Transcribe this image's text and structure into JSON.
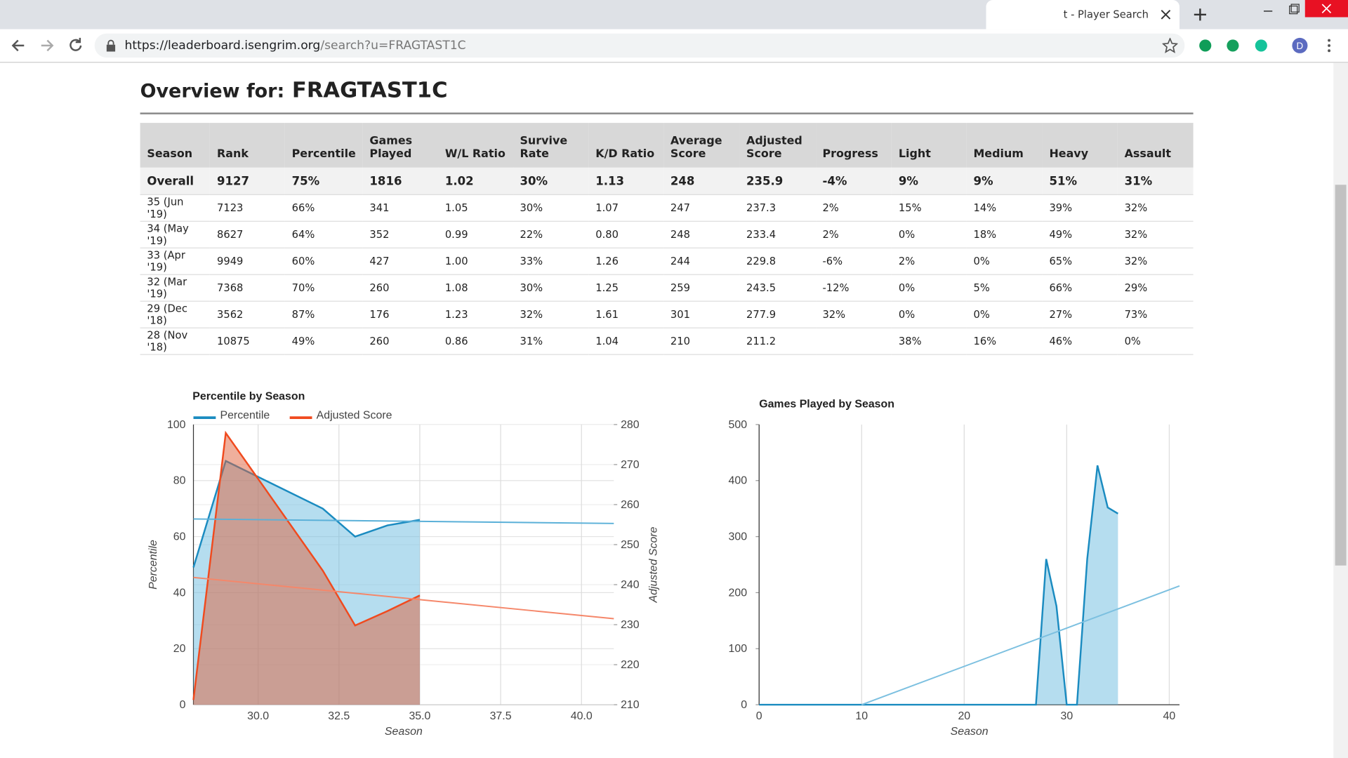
{
  "browser": {
    "tab_title": "t - Player Search",
    "url_host": "https://leaderboard.isengrim.org",
    "url_path": "/search?u=FRAGTAST1C",
    "profile_initial": "D"
  },
  "heading": {
    "label": "Overview for:",
    "player": "FRAGTAST1C"
  },
  "table": {
    "headers": [
      "Season",
      "Rank",
      "Percentile",
      "Games Played",
      "W/L Ratio",
      "Survive Rate",
      "K/D Ratio",
      "Average Score",
      "Adjusted Score",
      "Progress",
      "Light",
      "Medium",
      "Heavy",
      "Assault"
    ],
    "overall": [
      "Overall",
      "9127",
      "75%",
      "1816",
      "1.02",
      "30%",
      "1.13",
      "248",
      "235.9",
      "-4%",
      "9%",
      "9%",
      "51%",
      "31%"
    ],
    "rows": [
      [
        "35 (Jun '19)",
        "7123",
        "66%",
        "341",
        "1.05",
        "30%",
        "1.07",
        "247",
        "237.3",
        "2%",
        "15%",
        "14%",
        "39%",
        "32%"
      ],
      [
        "34 (May '19)",
        "8627",
        "64%",
        "352",
        "0.99",
        "22%",
        "0.80",
        "248",
        "233.4",
        "2%",
        "0%",
        "18%",
        "49%",
        "32%"
      ],
      [
        "33 (Apr '19)",
        "9949",
        "60%",
        "427",
        "1.00",
        "33%",
        "1.26",
        "244",
        "229.8",
        "-6%",
        "2%",
        "0%",
        "65%",
        "32%"
      ],
      [
        "32 (Mar '19)",
        "7368",
        "70%",
        "260",
        "1.08",
        "30%",
        "1.25",
        "259",
        "243.5",
        "-12%",
        "0%",
        "5%",
        "66%",
        "29%"
      ],
      [
        "29 (Dec '18)",
        "3562",
        "87%",
        "176",
        "1.23",
        "32%",
        "1.61",
        "301",
        "277.9",
        "32%",
        "0%",
        "0%",
        "27%",
        "73%"
      ],
      [
        "28 (Nov '18)",
        "10875",
        "49%",
        "260",
        "0.86",
        "31%",
        "1.04",
        "210",
        "211.2",
        null,
        "38%",
        "16%",
        "46%",
        "0%"
      ]
    ]
  },
  "chart_data": [
    {
      "type": "area",
      "title": "Percentile by Season",
      "x_label": "Season",
      "y_label": "Percentile",
      "y2_label": "Adjusted Score",
      "x": [
        28,
        29,
        32,
        33,
        34,
        35
      ],
      "series": [
        {
          "name": "Percentile",
          "color": "#1a8bc0",
          "fill": "#6cbbe0",
          "values": [
            49,
            87,
            70,
            60,
            64,
            66
          ]
        },
        {
          "name": "Adjusted Score",
          "color": "#f04a1e",
          "fill": "#e0603a",
          "axis": "y2",
          "values": [
            211.2,
            277.9,
            243.5,
            229.8,
            233.4,
            237.3
          ]
        }
      ],
      "trendlines": [
        {
          "axis": "y",
          "color": "#5ab0d8",
          "x": [
            28,
            41
          ],
          "values": [
            66.3,
            64.7
          ]
        },
        {
          "axis": "y2",
          "color": "#f5876a",
          "x": [
            28,
            41
          ],
          "values": [
            241.8,
            231.5
          ]
        }
      ],
      "xlim": [
        28,
        41
      ],
      "ylim": [
        0,
        100
      ],
      "y2lim": [
        210,
        280
      ],
      "xticks": [
        {
          "value": 30,
          "label": "30.0"
        },
        {
          "value": 32.5,
          "label": "32.5"
        },
        {
          "value": 35,
          "label": "35.0"
        },
        {
          "value": 37.5,
          "label": "37.5"
        },
        {
          "value": 40,
          "label": "40.0"
        }
      ],
      "yticks": [
        0,
        20,
        40,
        60,
        80,
        100
      ],
      "y2ticks": [
        210,
        220,
        230,
        240,
        250,
        260,
        270,
        280
      ],
      "grid": true
    },
    {
      "type": "area",
      "title": "Games Played by Season",
      "x_label": "Season",
      "x": [
        0,
        1,
        2,
        3,
        4,
        5,
        6,
        7,
        8,
        9,
        10,
        11,
        12,
        13,
        14,
        15,
        16,
        17,
        18,
        19,
        20,
        21,
        22,
        23,
        24,
        25,
        26,
        27,
        28,
        29,
        30,
        31,
        32,
        33,
        34,
        35
      ],
      "series": [
        {
          "color": "#1a8bc0",
          "fill": "#6cbbe0",
          "values": [
            0,
            0,
            0,
            0,
            0,
            0,
            0,
            0,
            0,
            0,
            0,
            0,
            0,
            0,
            0,
            0,
            0,
            0,
            0,
            0,
            0,
            0,
            0,
            0,
            0,
            0,
            0,
            0,
            260,
            176,
            0,
            0,
            260,
            427,
            352,
            341
          ]
        }
      ],
      "trendlines": [
        {
          "axis": "y",
          "color": "#7cc0e0",
          "x": [
            10,
            41
          ],
          "values": [
            0,
            212
          ]
        }
      ],
      "xlim": [
        0,
        41
      ],
      "ylim": [
        0,
        500
      ],
      "xticks": [
        0,
        10,
        20,
        30,
        40
      ],
      "yticks": [
        0,
        100,
        200,
        300,
        400,
        500
      ],
      "grid": true
    }
  ]
}
